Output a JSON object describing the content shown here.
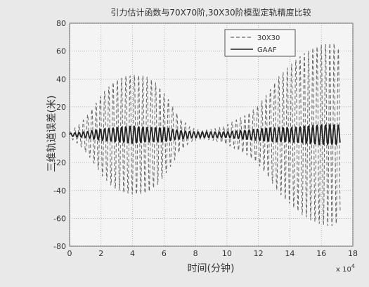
{
  "chart_data": {
    "type": "line",
    "title": "引力估计函数与70X70阶,30X30阶模型定轨精度比较",
    "xlabel": "时间(分钟)",
    "ylabel": "三维轨道误差(米)",
    "x_multiplier": "x 10",
    "x_multiplier_exp": "4",
    "xlim": [
      0,
      18
    ],
    "ylim": [
      -80,
      80
    ],
    "xticks": [
      "0",
      "2",
      "4",
      "6",
      "8",
      "10",
      "12",
      "14",
      "16",
      "18"
    ],
    "yticks": [
      "-80",
      "-60",
      "-40",
      "-20",
      "0",
      "20",
      "40",
      "60",
      "80"
    ],
    "grid": true,
    "legend_position": "top-right",
    "series": [
      {
        "name": "30X30",
        "style": "dashed",
        "color": "#666666",
        "x": [
          0,
          0.7,
          1.4,
          2.1,
          2.8,
          3.5,
          4.2,
          4.9,
          5.6,
          6.3,
          7.0,
          7.7,
          8.4,
          9.1,
          9.8,
          10.5,
          11.2,
          11.9,
          12.6,
          13.3,
          14.0,
          14.7,
          15.4,
          16.1,
          16.8,
          17.2
        ],
        "envelope": [
          2,
          8,
          18,
          30,
          38,
          42,
          43,
          42,
          36,
          25,
          12,
          5,
          3,
          4,
          6,
          10,
          14,
          20,
          30,
          42,
          50,
          57,
          62,
          65,
          66,
          60
        ]
      },
      {
        "name": "GAAF",
        "style": "solid",
        "color": "#222222",
        "x": [
          0,
          1.0,
          2.0,
          3.0,
          4.0,
          5.0,
          6.0,
          7.0,
          8.0,
          9.0,
          10.0,
          11.0,
          12.0,
          13.0,
          14.0,
          15.0,
          16.0,
          17.0,
          17.2
        ],
        "envelope": [
          1,
          2,
          4,
          5,
          6,
          5,
          5,
          3,
          2,
          2,
          2,
          3,
          4,
          5,
          5,
          6,
          7,
          7,
          6
        ]
      }
    ]
  }
}
